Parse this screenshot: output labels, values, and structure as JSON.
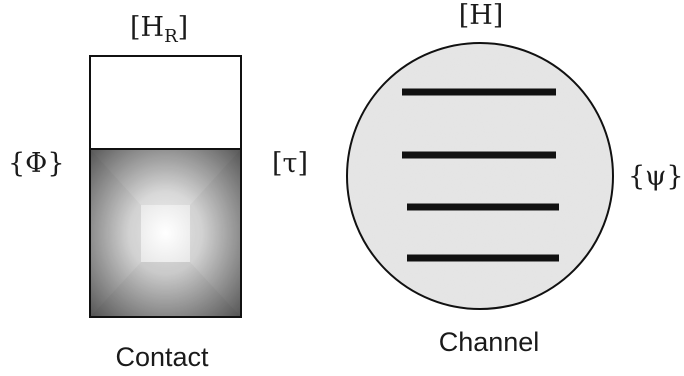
{
  "contact": {
    "top_label": "[H",
    "top_label_subscript": "R",
    "top_label_close": "]",
    "left_label": "{Φ}",
    "right_label": "[τ]",
    "caption": "Contact"
  },
  "channel": {
    "top_label": "[H]",
    "right_label": "{ψ}",
    "caption": "Channel",
    "line_count": 4
  },
  "colors": {
    "stroke": "#111111",
    "gradient_edge": "#6e6e6e",
    "gradient_center": "#ffffff",
    "channel_fill": "#e2e2e2"
  }
}
